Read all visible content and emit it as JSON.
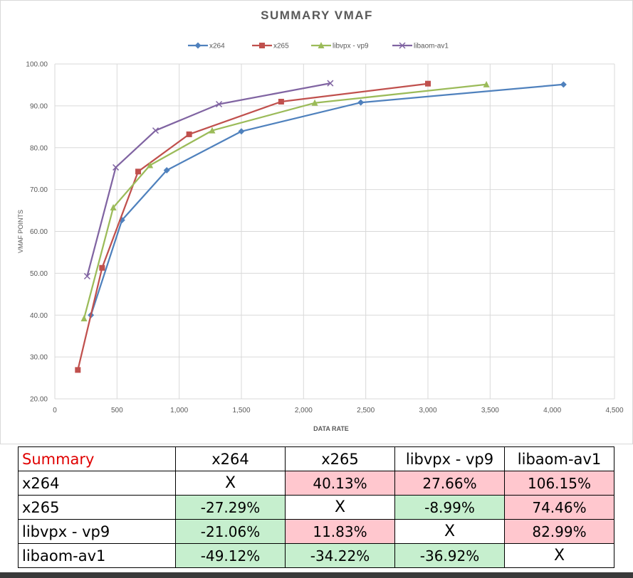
{
  "chart_data": {
    "type": "line",
    "title": "SUMMARY VMAF",
    "xlabel": "DATA RATE",
    "ylabel": "VMAF POINTS",
    "xlim": [
      0,
      4500
    ],
    "ylim": [
      20,
      100
    ],
    "x_ticks": [
      "0",
      "500",
      "1,000",
      "1,500",
      "2,000",
      "2,500",
      "3,000",
      "3,500",
      "4,000",
      "4,500"
    ],
    "y_ticks": [
      "20.00",
      "30.00",
      "40.00",
      "50.00",
      "60.00",
      "70.00",
      "80.00",
      "90.00",
      "100.00"
    ],
    "grid": true,
    "legend_position": "top",
    "series": [
      {
        "name": "x264",
        "color": "#4f81bd",
        "marker": "diamond",
        "points": [
          [
            290,
            40.0
          ],
          [
            540,
            62.7
          ],
          [
            900,
            74.6
          ],
          [
            1500,
            83.9
          ],
          [
            2460,
            90.8
          ],
          [
            4090,
            95.1
          ]
        ]
      },
      {
        "name": "x265",
        "color": "#c0504d",
        "marker": "square",
        "points": [
          [
            185,
            26.9
          ],
          [
            380,
            51.3
          ],
          [
            670,
            74.3
          ],
          [
            1080,
            83.2
          ],
          [
            1820,
            91.0
          ],
          [
            3000,
            95.3
          ]
        ]
      },
      {
        "name": "libvpx - vp9",
        "color": "#9bbb59",
        "marker": "triangle",
        "points": [
          [
            235,
            39.2
          ],
          [
            470,
            65.7
          ],
          [
            765,
            75.8
          ],
          [
            1265,
            84.1
          ],
          [
            2090,
            90.7
          ],
          [
            3470,
            95.1
          ]
        ]
      },
      {
        "name": "libaom-av1",
        "color": "#8064a2",
        "marker": "x",
        "points": [
          [
            260,
            49.3
          ],
          [
            490,
            75.3
          ],
          [
            810,
            84.1
          ],
          [
            1320,
            90.4
          ],
          [
            2215,
            95.4
          ]
        ]
      }
    ]
  },
  "table": {
    "corner": "Summary",
    "columns": [
      "x264",
      "x265",
      "libvpx - vp9",
      "libaom-av1"
    ],
    "rows": [
      {
        "label": "x264",
        "cells": [
          "X",
          "40.13%",
          "27.66%",
          "106.15%"
        ]
      },
      {
        "label": "x265",
        "cells": [
          "-27.29%",
          "X",
          "-8.99%",
          "74.46%"
        ]
      },
      {
        "label": "libvpx - vp9",
        "cells": [
          "-21.06%",
          "11.83%",
          "X",
          "82.99%"
        ]
      },
      {
        "label": "libaom-av1",
        "cells": [
          "-49.12%",
          "-34.22%",
          "-36.92%",
          "X"
        ]
      }
    ],
    "colors": {
      "positive": "#ffc7ce",
      "negative": "#c6efce",
      "corner_text": "#e00000"
    }
  }
}
